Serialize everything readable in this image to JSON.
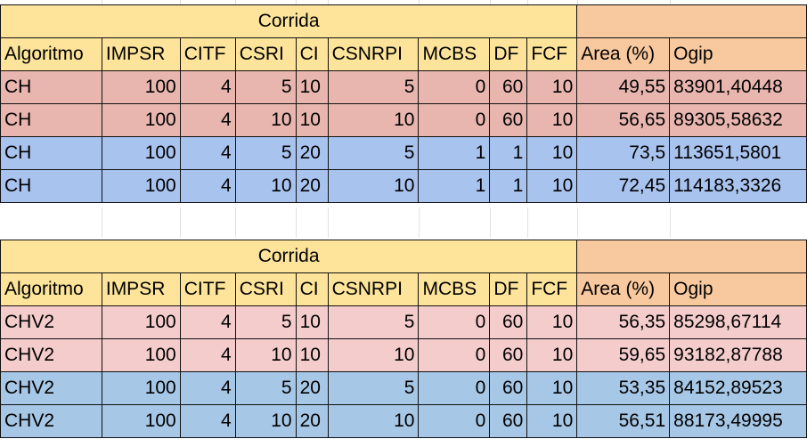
{
  "tables": [
    {
      "title": "Corrida",
      "headers": [
        "Algoritmo",
        "IMPSR",
        "CITF",
        "CSRI",
        "CI",
        "CSNRPI",
        "MCBS",
        "DF",
        "FCF",
        "Area (%)",
        "Ogip"
      ],
      "rows": [
        [
          "CH",
          "100",
          "4",
          "5",
          "10",
          "5",
          "0",
          "60",
          "10",
          "49,55",
          "83901,40448"
        ],
        [
          "CH",
          "100",
          "4",
          "10",
          "10",
          "10",
          "0",
          "60",
          "10",
          "56,65",
          "89305,58632"
        ],
        [
          "CH",
          "100",
          "4",
          "5",
          "20",
          "5",
          "1",
          "1",
          "10",
          "73,5",
          "113651,5801"
        ],
        [
          "CH",
          "100",
          "4",
          "10",
          "20",
          "10",
          "1",
          "1",
          "10",
          "72,45",
          "114183,3326"
        ]
      ],
      "row_colors": [
        "#e8b6ae",
        "#e8b6ae",
        "#a9c3ef",
        "#a9c3ef"
      ]
    },
    {
      "title": "Corrida",
      "headers": [
        "Algoritmo",
        "IMPSR",
        "CITF",
        "CSRI",
        "CI",
        "CSNRPI",
        "MCBS",
        "DF",
        "FCF",
        "Area (%)",
        "Ogip"
      ],
      "rows": [
        [
          "CHV2",
          "100",
          "4",
          "5",
          "10",
          "5",
          "0",
          "60",
          "10",
          "56,35",
          "85298,67114"
        ],
        [
          "CHV2",
          "100",
          "4",
          "10",
          "10",
          "10",
          "0",
          "60",
          "10",
          "59,65",
          "93182,87788"
        ],
        [
          "CHV2",
          "100",
          "4",
          "5",
          "20",
          "5",
          "0",
          "60",
          "10",
          "53,35",
          "84152,89523"
        ],
        [
          "CHV2",
          "100",
          "4",
          "10",
          "20",
          "10",
          "0",
          "60",
          "10",
          "56,51",
          "88173,49995"
        ]
      ],
      "row_colors": [
        "#f4cccc",
        "#f4cccc",
        "#a7c7e6",
        "#a7c7e6"
      ]
    }
  ],
  "colors": {
    "header_yellow": "#fde49a",
    "header_orange": "#f8c89e"
  }
}
